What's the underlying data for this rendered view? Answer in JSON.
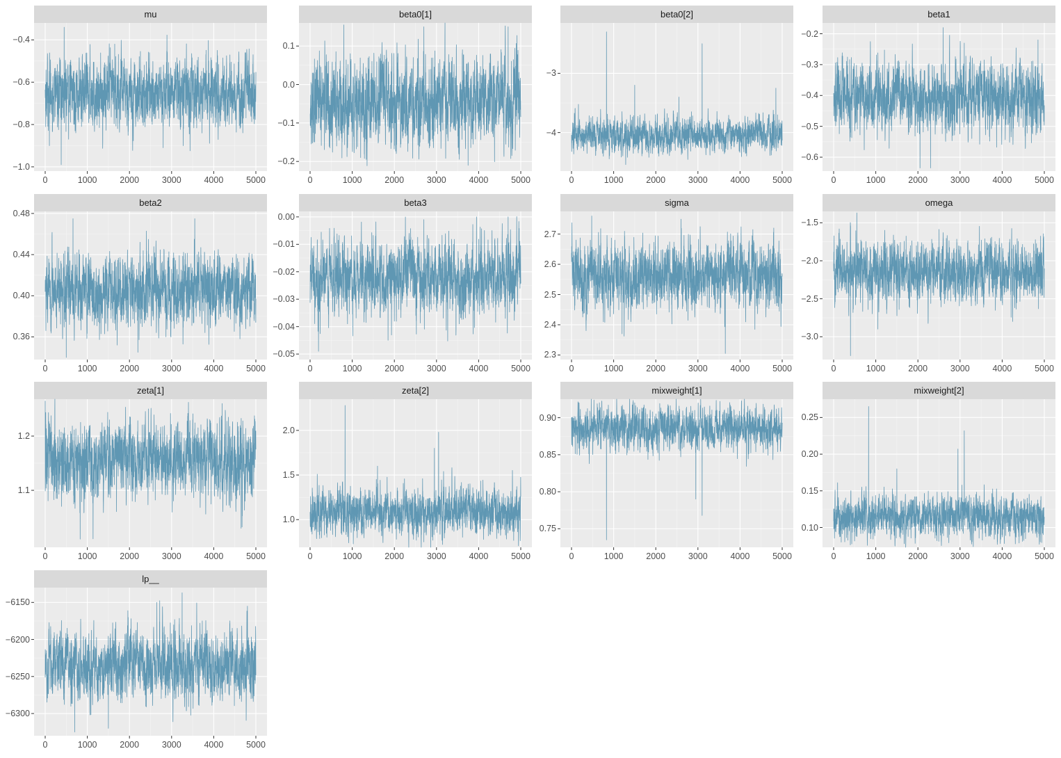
{
  "chart_data": {
    "type": "line",
    "layout": "facet-grid",
    "columns": 4,
    "line_color": "#5f97b3",
    "panel_background": "#ebebeb",
    "strip_background": "#d9d9d9",
    "grid": true,
    "xlabel": "",
    "ylabel": "",
    "x_range": [
      0,
      5000
    ],
    "x_ticks": [
      0,
      1000,
      2000,
      3000,
      4000,
      5000
    ],
    "iterations": 5000,
    "panels": [
      {
        "name": "mu",
        "ylim": [
          -1.02,
          -0.32
        ],
        "y_ticks": [
          -1.0,
          -0.8,
          -0.6,
          -0.4
        ],
        "y_tick_labels": [
          "−1.0",
          "−0.8",
          "−0.6",
          "−0.4"
        ],
        "center": -0.65,
        "spread": 0.08,
        "spikes": [
          [
            450,
            -0.34
          ],
          [
            380,
            -0.99
          ],
          [
            100,
            -0.9
          ],
          [
            2800,
            -0.91
          ],
          [
            1650,
            -0.42
          ]
        ]
      },
      {
        "name": "beta0[1]",
        "ylim": [
          -0.225,
          0.16
        ],
        "y_ticks": [
          -0.2,
          -0.1,
          0.0,
          0.1
        ],
        "y_tick_labels": [
          "−0.2",
          "−0.1",
          "0.0",
          "0.1"
        ],
        "center": -0.045,
        "spread": 0.055,
        "spikes": [
          [
            800,
            0.155
          ],
          [
            3750,
            -0.21
          ],
          [
            2700,
            0.15
          ],
          [
            4700,
            0.15
          ],
          [
            1200,
            -0.19
          ]
        ]
      },
      {
        "name": "beta0[2]",
        "ylim": [
          -4.65,
          -2.15
        ],
        "y_ticks": [
          -4,
          -3
        ],
        "y_tick_labels": [
          "−4",
          "−3"
        ],
        "center": -4.05,
        "spread": 0.14,
        "spikes": [
          [
            830,
            -2.3
          ],
          [
            3100,
            -2.5
          ],
          [
            1500,
            -3.2
          ],
          [
            4850,
            -3.25
          ],
          [
            2550,
            -3.4
          ]
        ]
      },
      {
        "name": "beta1",
        "ylim": [
          -0.645,
          -0.165
        ],
        "y_ticks": [
          -0.6,
          -0.5,
          -0.4,
          -0.3,
          -0.2
        ],
        "y_tick_labels": [
          "−0.6",
          "−0.5",
          "−0.4",
          "−0.3",
          "−0.2"
        ],
        "center": -0.41,
        "spread": 0.055,
        "spikes": [
          [
            2600,
            -0.18
          ],
          [
            2050,
            -0.635
          ],
          [
            2300,
            -0.635
          ],
          [
            4850,
            -0.22
          ],
          [
            3100,
            -0.23
          ]
        ]
      },
      {
        "name": "beta2",
        "ylim": [
          0.338,
          0.482
        ],
        "y_ticks": [
          0.36,
          0.4,
          0.44,
          0.48
        ],
        "y_tick_labels": [
          "0.36",
          "0.40",
          "0.44",
          "0.48"
        ],
        "center": 0.405,
        "spread": 0.017,
        "spikes": [
          [
            660,
            0.475
          ],
          [
            3550,
            0.475
          ],
          [
            500,
            0.34
          ],
          [
            2200,
            0.345
          ]
        ]
      },
      {
        "name": "beta3",
        "ylim": [
          -0.052,
          0.002
        ],
        "y_ticks": [
          -0.05,
          -0.04,
          -0.03,
          -0.02,
          -0.01,
          0.0
        ],
        "y_tick_labels": [
          "−0.05",
          "−0.04",
          "−0.03",
          "−0.02",
          "−0.01",
          "0.00"
        ],
        "center": -0.022,
        "spread": 0.0065,
        "spikes": [
          [
            200,
            -0.049
          ],
          [
            3950,
            0.0
          ],
          [
            4700,
            0.0
          ],
          [
            1850,
            -0.045
          ],
          [
            2700,
            -0.001
          ]
        ]
      },
      {
        "name": "sigma",
        "ylim": [
          2.285,
          2.775
        ],
        "y_ticks": [
          2.3,
          2.4,
          2.5,
          2.6,
          2.7
        ],
        "y_tick_labels": [
          "2.3",
          "2.4",
          "2.5",
          "2.6",
          "2.7"
        ],
        "center": 2.56,
        "spread": 0.055,
        "spikes": [
          [
            3650,
            2.305
          ],
          [
            480,
            2.76
          ],
          [
            4800,
            2.72
          ],
          [
            1200,
            2.37
          ]
        ]
      },
      {
        "name": "omega",
        "ylim": [
          -3.3,
          -1.35
        ],
        "y_ticks": [
          -3.0,
          -2.5,
          -2.0,
          -1.5
        ],
        "y_tick_labels": [
          "−3.0",
          "−2.5",
          "−2.0",
          "−1.5"
        ],
        "center": -2.15,
        "spread": 0.2,
        "spikes": [
          [
            400,
            -3.25
          ],
          [
            550,
            -1.37
          ],
          [
            1050,
            -2.9
          ],
          [
            4250,
            -2.8
          ]
        ]
      },
      {
        "name": "zeta[1]",
        "ylim": [
          0.995,
          1.268
        ],
        "y_ticks": [
          1.1,
          1.2
        ],
        "y_tick_labels": [
          "1.1",
          "1.2"
        ],
        "center": 1.155,
        "spread": 0.033,
        "spikes": [
          [
            0,
            1.265
          ],
          [
            830,
            1.01
          ],
          [
            4200,
            1.26
          ],
          [
            4650,
            1.03
          ],
          [
            2450,
            1.25
          ]
        ]
      },
      {
        "name": "zeta[2]",
        "ylim": [
          0.69,
          2.35
        ],
        "y_ticks": [
          1.0,
          1.5,
          2.0
        ],
        "y_tick_labels": [
          "1.0",
          "1.5",
          "2.0"
        ],
        "center": 1.08,
        "spread": 0.13,
        "spikes": [
          [
            830,
            2.28
          ],
          [
            3050,
            1.98
          ],
          [
            2950,
            1.8
          ],
          [
            1600,
            1.6
          ],
          [
            2700,
            0.75
          ]
        ]
      },
      {
        "name": "mixweight[1]",
        "ylim": [
          0.725,
          0.925
        ],
        "y_ticks": [
          0.75,
          0.8,
          0.85,
          0.9
        ],
        "y_tick_labels": [
          "0.75",
          "0.80",
          "0.85",
          "0.90"
        ],
        "center": 0.885,
        "spread": 0.014,
        "spikes": [
          [
            830,
            0.735
          ],
          [
            3100,
            0.768
          ],
          [
            2950,
            0.79
          ],
          [
            180,
            0.92
          ],
          [
            1500,
            0.92
          ]
        ]
      },
      {
        "name": "mixweight[2]",
        "ylim": [
          0.073,
          0.275
        ],
        "y_ticks": [
          0.1,
          0.15,
          0.2,
          0.25
        ],
        "y_tick_labels": [
          "0.10",
          "0.15",
          "0.20",
          "0.25"
        ],
        "center": 0.115,
        "spread": 0.014,
        "spikes": [
          [
            830,
            0.265
          ],
          [
            3100,
            0.232
          ],
          [
            2950,
            0.207
          ],
          [
            1500,
            0.18
          ],
          [
            180,
            0.08
          ]
        ]
      },
      {
        "name": "lp__",
        "ylim": [
          -6330,
          -6130
        ],
        "y_ticks": [
          -6300,
          -6250,
          -6200,
          -6150
        ],
        "y_tick_labels": [
          "−6300",
          "−6250",
          "−6200",
          "−6150"
        ],
        "center": -6235,
        "spread": 22,
        "spikes": [
          [
            3250,
            -6137
          ],
          [
            700,
            -6325
          ],
          [
            1500,
            -6320
          ],
          [
            4800,
            -6155
          ],
          [
            2650,
            -6150
          ]
        ]
      }
    ]
  }
}
